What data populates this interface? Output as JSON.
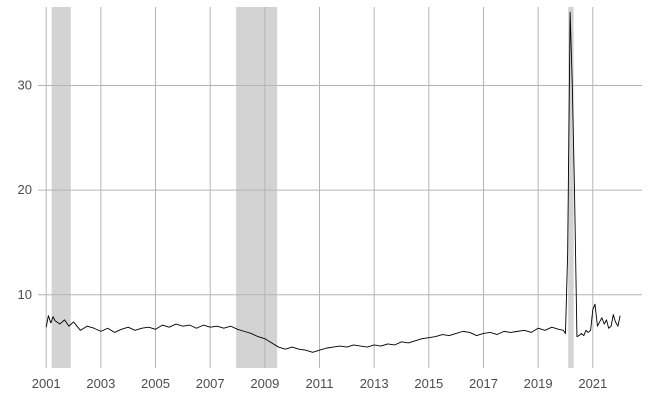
{
  "chart_data": {
    "type": "line",
    "title": "",
    "xlabel": "",
    "ylabel": "",
    "xlim": [
      2000.7,
      2022.8
    ],
    "ylim": [
      3,
      37.5
    ],
    "x_ticks": [
      2001,
      2003,
      2005,
      2007,
      2009,
      2011,
      2013,
      2015,
      2017,
      2019,
      2021
    ],
    "x_tick_labels": [
      "2001",
      "2003",
      "2005",
      "2007",
      "2009",
      "2011",
      "2013",
      "2015",
      "2017",
      "2019",
      "2021"
    ],
    "y_ticks": [
      10,
      20,
      30
    ],
    "y_tick_labels": [
      "10",
      "20",
      "30"
    ],
    "grid": true,
    "legend": "none",
    "colors": {
      "line": "#000000",
      "recession": "#d3d3d3",
      "grid": "#b5b5b5",
      "tick_text": "#4d4d4d"
    },
    "shaded_periods": [
      {
        "start": 2001.2,
        "end": 2001.9
      },
      {
        "start": 2007.95,
        "end": 2009.45
      },
      {
        "start": 2020.1,
        "end": 2020.3
      }
    ],
    "series": [
      {
        "x": [
          2001.0,
          2001.08,
          2001.17,
          2001.25,
          2001.33,
          2001.5,
          2001.67,
          2001.83,
          2002.0,
          2002.25,
          2002.5,
          2002.75,
          2003.0,
          2003.25,
          2003.5,
          2003.75,
          2004.0,
          2004.25,
          2004.5,
          2004.75,
          2005.0,
          2005.25,
          2005.5,
          2005.75,
          2006.0,
          2006.25,
          2006.5,
          2006.75,
          2007.0,
          2007.25,
          2007.5,
          2007.75,
          2008.0,
          2008.25,
          2008.5,
          2008.75,
          2009.0,
          2009.25,
          2009.5,
          2009.75,
          2010.0,
          2010.25,
          2010.5,
          2010.75,
          2011.0,
          2011.25,
          2011.5,
          2011.75,
          2012.0,
          2012.25,
          2012.5,
          2012.75,
          2013.0,
          2013.25,
          2013.5,
          2013.75,
          2014.0,
          2014.25,
          2014.5,
          2014.75,
          2015.0,
          2015.25,
          2015.5,
          2015.75,
          2016.0,
          2016.25,
          2016.5,
          2016.75,
          2017.0,
          2017.25,
          2017.5,
          2017.75,
          2018.0,
          2018.25,
          2018.5,
          2018.75,
          2019.0,
          2019.25,
          2019.5,
          2019.75,
          2019.92,
          2020.0,
          2020.08,
          2020.17,
          2020.25,
          2020.33,
          2020.42,
          2020.5,
          2020.58,
          2020.67,
          2020.75,
          2020.83,
          2020.92,
          2021.0,
          2021.08,
          2021.17,
          2021.25,
          2021.33,
          2021.42,
          2021.5,
          2021.58,
          2021.67,
          2021.75,
          2021.83,
          2021.92,
          2022.0
        ],
        "values": [
          6.9,
          8.0,
          7.3,
          7.9,
          7.5,
          7.2,
          7.6,
          7.0,
          7.4,
          6.6,
          7.0,
          6.8,
          6.5,
          6.8,
          6.4,
          6.7,
          6.9,
          6.6,
          6.8,
          6.9,
          6.7,
          7.1,
          6.9,
          7.2,
          7.0,
          7.1,
          6.8,
          7.1,
          6.9,
          7.0,
          6.8,
          7.0,
          6.7,
          6.5,
          6.3,
          6.0,
          5.8,
          5.4,
          5.0,
          4.8,
          5.0,
          4.8,
          4.7,
          4.5,
          4.7,
          4.9,
          5.0,
          5.1,
          5.0,
          5.2,
          5.1,
          5.0,
          5.2,
          5.1,
          5.3,
          5.2,
          5.5,
          5.4,
          5.6,
          5.8,
          5.9,
          6.0,
          6.2,
          6.1,
          6.3,
          6.5,
          6.4,
          6.1,
          6.3,
          6.4,
          6.2,
          6.5,
          6.4,
          6.5,
          6.6,
          6.4,
          6.8,
          6.6,
          6.9,
          6.7,
          6.6,
          6.3,
          14.0,
          37.0,
          30.0,
          20.0,
          6.0,
          6.1,
          6.3,
          6.1,
          6.6,
          6.4,
          6.6,
          8.6,
          9.1,
          7.0,
          7.4,
          7.8,
          7.2,
          7.6,
          6.8,
          7.0,
          8.1,
          7.4,
          7.0,
          8.0
        ]
      }
    ]
  }
}
